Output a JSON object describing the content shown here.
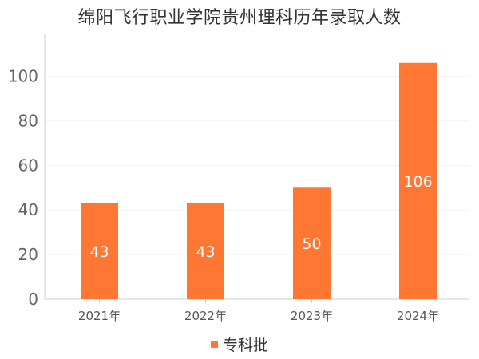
{
  "chart_data": {
    "type": "bar",
    "title": "绵阳飞行职业学院贵州理科历年录取人数",
    "categories": [
      "2021年",
      "2022年",
      "2023年",
      "2024年"
    ],
    "series": [
      {
        "name": "专科批",
        "values": [
          43,
          43,
          50,
          106
        ],
        "color": "#ff7733"
      }
    ],
    "ylim": [
      0,
      112
    ],
    "yticks": [
      0,
      20,
      40,
      60,
      80,
      100
    ],
    "grid": true,
    "legend_position": "bottom-center",
    "data_labels": true
  }
}
